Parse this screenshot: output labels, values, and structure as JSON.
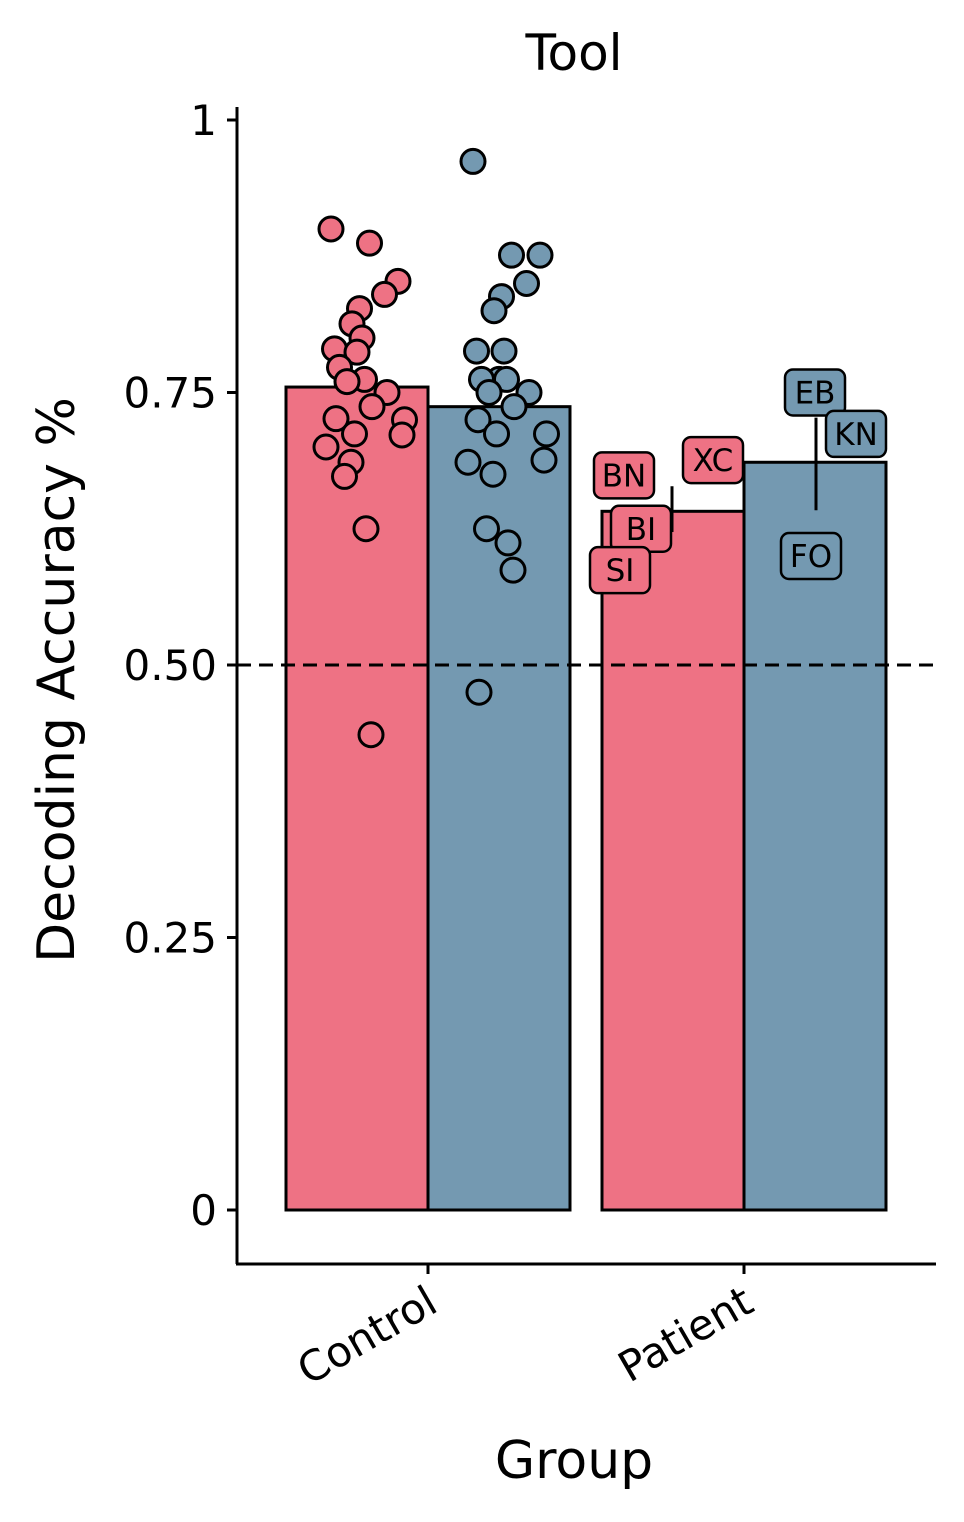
{
  "chart_data": {
    "type": "bar",
    "title": "Tool",
    "xlabel": "Group",
    "ylabel": "Decoding Accuracy %",
    "ylim": [
      -0.05,
      1.01
    ],
    "yticks": [
      {
        "value": 0,
        "label": "0"
      },
      {
        "value": 0.25,
        "label": "0.25"
      },
      {
        "value": 0.5,
        "label": "0.50"
      },
      {
        "value": 0.75,
        "label": "0.75"
      },
      {
        "value": 1,
        "label": "1"
      }
    ],
    "categories": [
      "Control",
      "Patient"
    ],
    "reference_line": 0.5,
    "grid": false,
    "legend": "none",
    "series": [
      {
        "color": "#ee7284",
        "values": [
          0.755,
          0.641
        ],
        "error": [
          null,
          [
            0.622,
            0.664
          ]
        ],
        "points": [
          [
            0.9,
            0.887,
            0.852,
            0.84,
            0.827,
            0.813,
            0.8,
            0.79,
            0.787,
            0.773,
            0.762,
            0.76,
            0.75,
            0.737,
            0.726,
            0.725,
            0.712,
            0.711,
            0.7,
            0.686,
            0.673,
            0.625,
            0.436
          ],
          [
            0.674,
            0.688,
            0.625,
            0.587
          ]
        ],
        "labels": [
          [],
          [
            "BN",
            "XC",
            "BI",
            "SI"
          ]
        ]
      },
      {
        "color": "#7499b1",
        "values": [
          0.737,
          0.686
        ],
        "error": [
          null,
          [
            0.642,
            0.727
          ]
        ],
        "points": [
          [
            0.962,
            0.876,
            0.876,
            0.85,
            0.838,
            0.825,
            0.788,
            0.788,
            0.762,
            0.762,
            0.762,
            0.75,
            0.75,
            0.737,
            0.725,
            0.712,
            0.712,
            0.688,
            0.686,
            0.675,
            0.625,
            0.612,
            0.587,
            0.475
          ],
          [
            0.75,
            0.712,
            0.6
          ]
        ],
        "labels": [
          [],
          [
            "EB",
            "KN",
            "FO"
          ]
        ]
      }
    ]
  }
}
